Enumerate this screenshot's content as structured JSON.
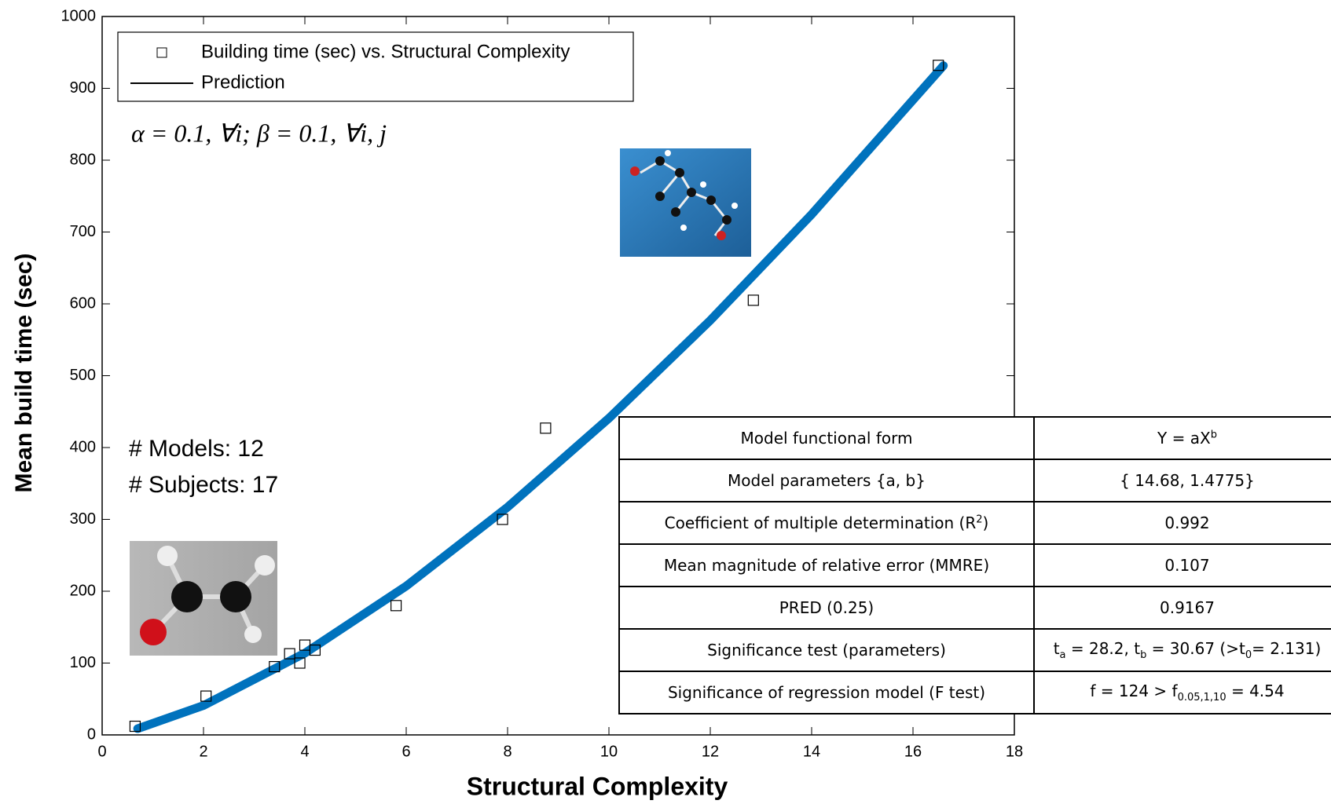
{
  "chart_data": {
    "type": "scatter",
    "xlabel": "Structural Complexity",
    "ylabel": "Mean build time (sec)",
    "xlim": [
      0,
      18
    ],
    "xticks": [
      0,
      2,
      4,
      6,
      8,
      10,
      12,
      14,
      16,
      18
    ],
    "ylim": [
      0,
      1000
    ],
    "yticks": [
      0,
      100,
      200,
      300,
      400,
      500,
      600,
      700,
      800,
      900,
      1000
    ],
    "series": [
      {
        "name": "Building time (sec) vs. Structural Complexity",
        "type": "scatter",
        "color": "#000000",
        "x": [
          0.65,
          2.05,
          3.4,
          3.7,
          3.9,
          4.0,
          4.2,
          5.8,
          7.9,
          8.75,
          12.85,
          16.5
        ],
        "values": [
          12,
          54,
          95,
          113,
          100,
          125,
          118,
          180,
          300,
          427,
          605,
          932
        ]
      },
      {
        "name": "Prediction",
        "type": "line",
        "color": "#0072bd",
        "x": [
          0.7,
          2,
          4,
          6,
          8,
          10,
          12,
          14,
          16.6
        ],
        "values": [
          8.7,
          40.9,
          113.8,
          207.2,
          317.0,
          440.8,
          577,
          724.6,
          931.6
        ]
      }
    ],
    "annotations": [
      "α = 0.1, ∀i; β = 0.1, ∀i, j",
      "# Models:  12",
      "# Subjects:  17"
    ]
  },
  "table": {
    "rows": [
      [
        "Model functional form",
        [
          "Y = aX",
          "b"
        ]
      ],
      [
        "Model parameters {a, b}",
        "{ 14.68, 1.4775}"
      ],
      [
        [
          "Coefficient of multiple determination (R",
          "2",
          ")"
        ],
        "0.992"
      ],
      [
        "Mean magnitude of relative error (MMRE)",
        "0.107"
      ],
      [
        "PRED (0.25)",
        "0.9167"
      ],
      [
        "Significance test (parameters)",
        [
          "t",
          "a",
          " = 28.2, t",
          "b",
          " = 30.67 (>t",
          "0",
          "= 2.131)"
        ]
      ],
      [
        "Significance of regression model (F test)",
        [
          "f = 124 > f",
          "0.05,1,10",
          " = 4.54"
        ]
      ]
    ]
  }
}
